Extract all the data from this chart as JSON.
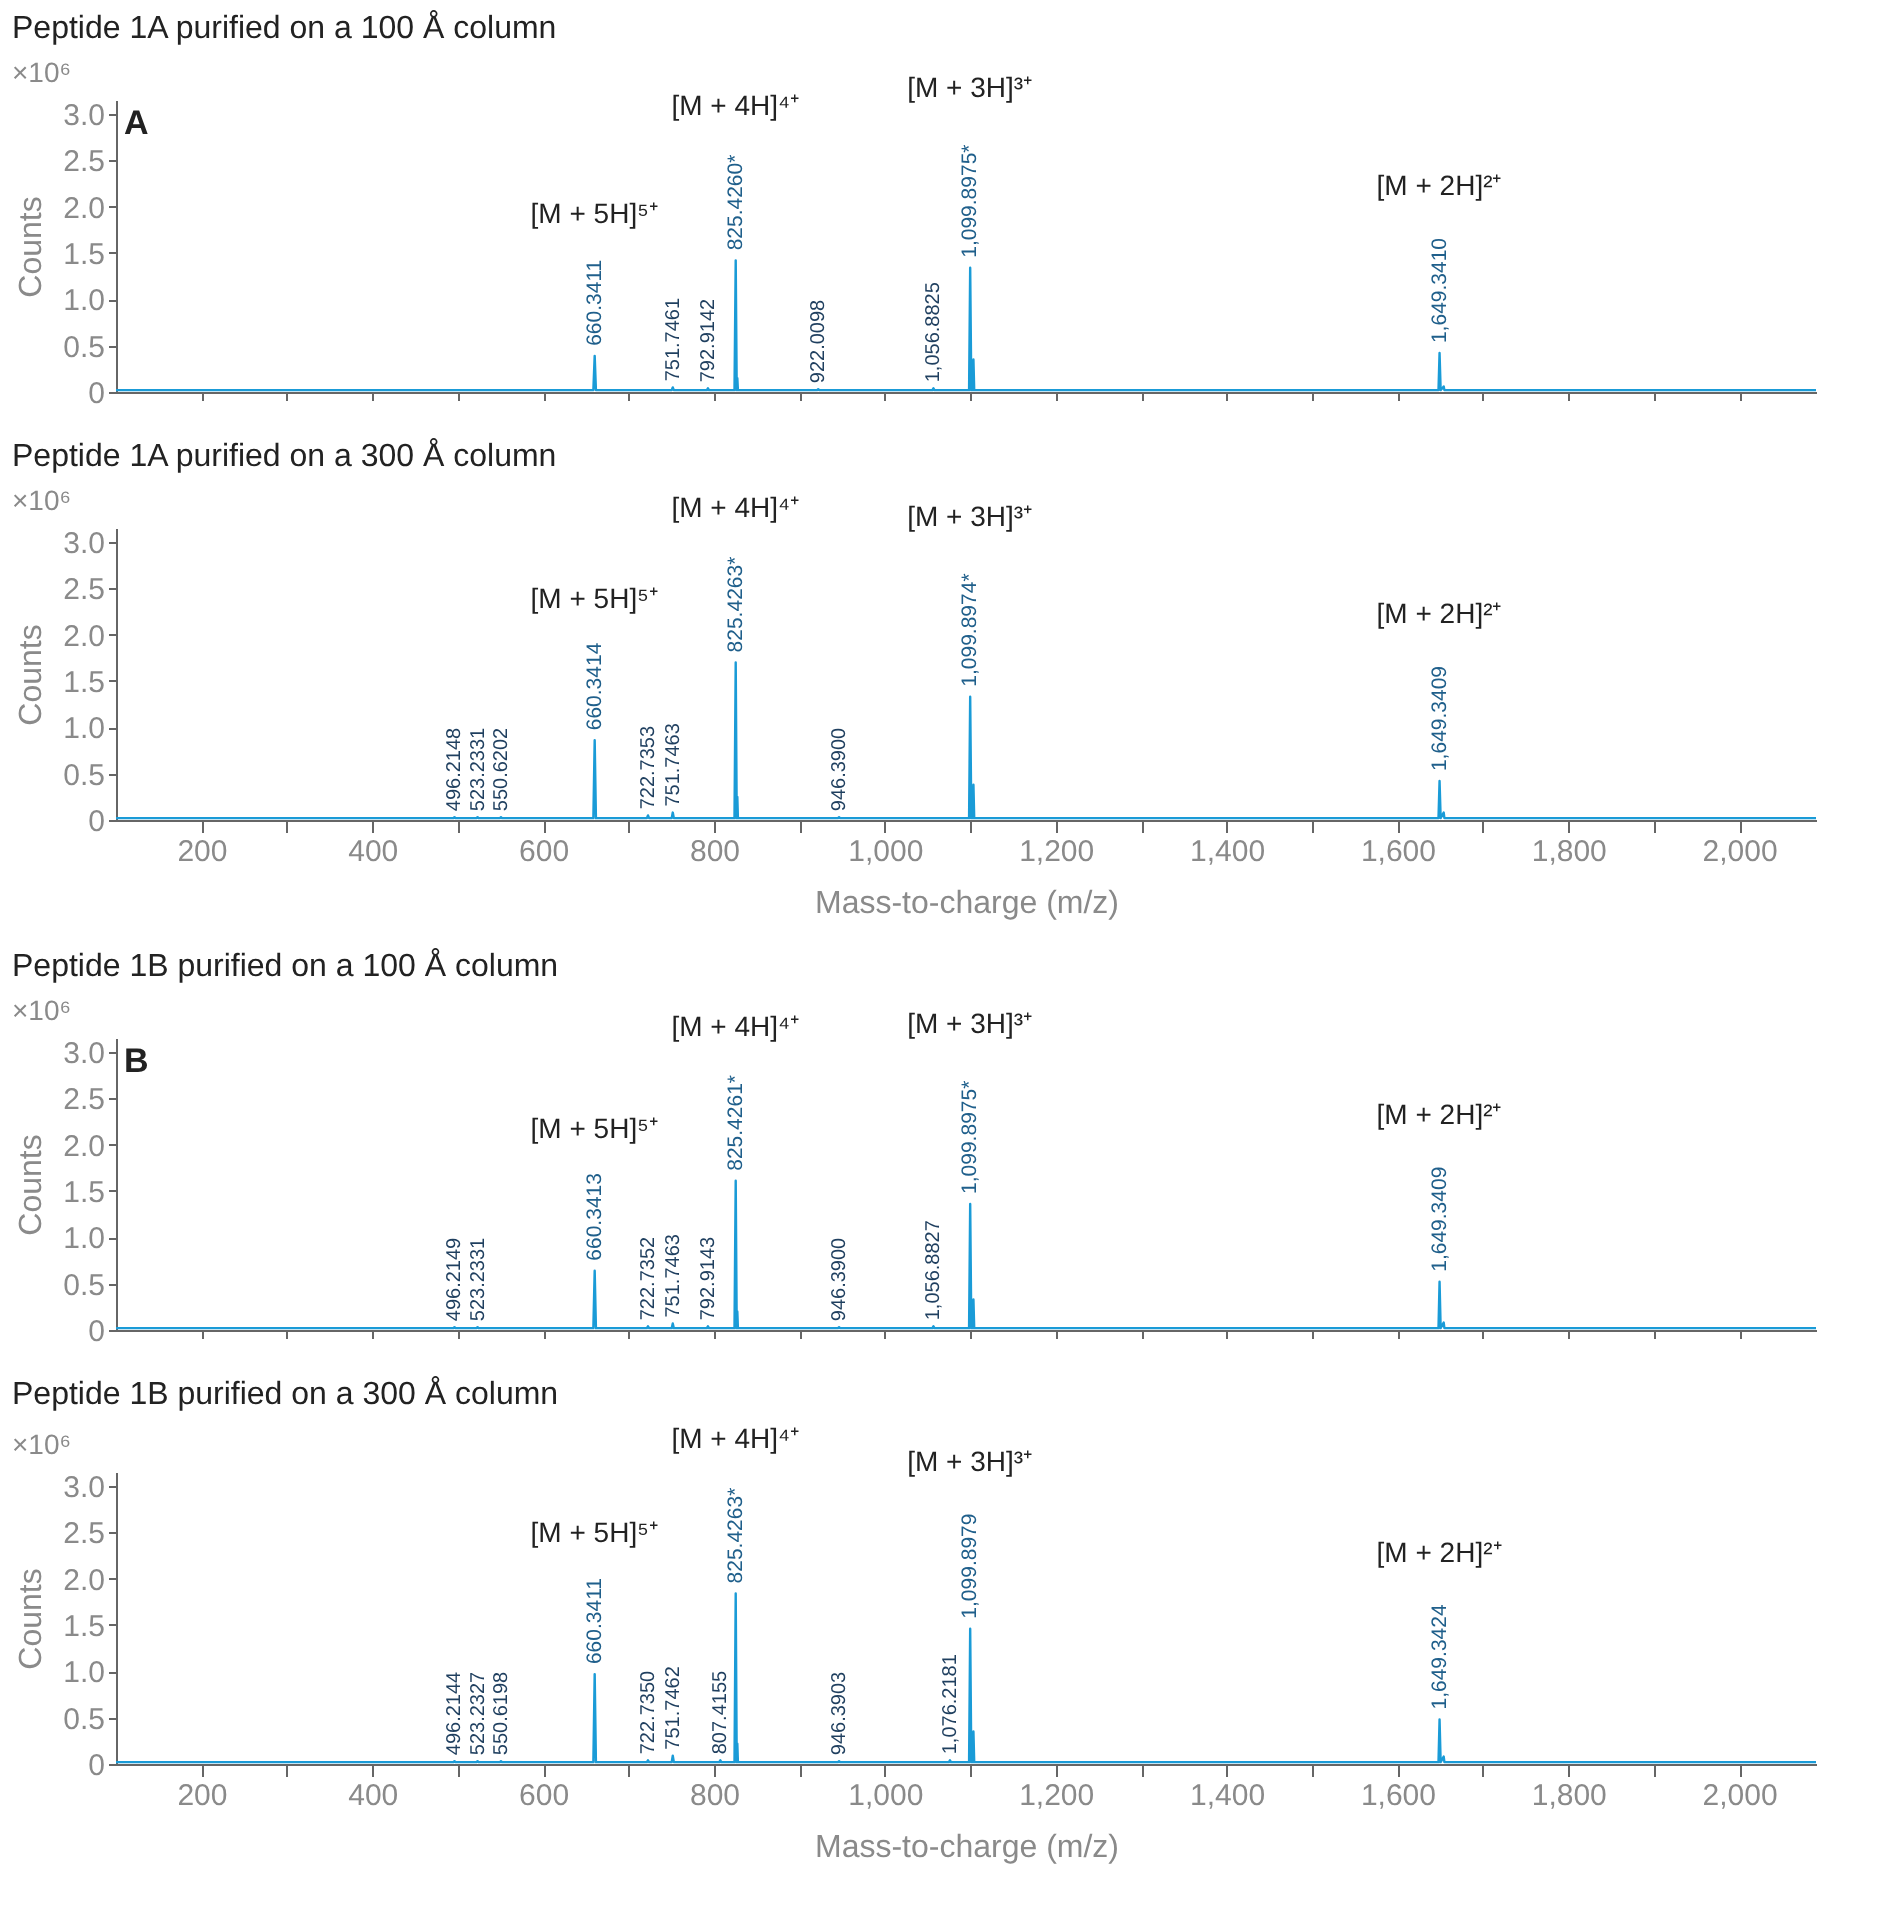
{
  "chart_data": [
    {
      "type": "line",
      "title": "Peptide 1A purified on a 100 Å column",
      "ylabel": "Counts",
      "color": "#1a9bd7",
      "tick_labels": "y",
      "xlim": [
        100,
        2090
      ],
      "ylim": [
        0,
        3.15
      ],
      "xticks": [
        200,
        300,
        400,
        500,
        600,
        700,
        800,
        900,
        1000,
        1100,
        1200,
        1300,
        1400,
        1500,
        1600,
        1700,
        1800,
        1900,
        2000
      ],
      "yticks": [
        0,
        0.5,
        {
          "value": 1,
          "label": "1.0"
        },
        1.5,
        {
          "value": 2,
          "label": "2.0"
        },
        2.5,
        {
          "value": 3,
          "label": "3.0"
        }
      ],
      "x": [
        100,
        658.8,
        660.3411,
        661.8,
        750.5,
        751.7461,
        753,
        791.7,
        792.9142,
        794.1,
        824,
        825.426,
        826.6,
        827.3,
        828,
        829,
        920.8,
        922.0098,
        923.2,
        1055.7,
        1056.8825,
        1058.1,
        1098.6,
        1099.8975,
        1101.2,
        1102.3,
        1103,
        1103.7,
        1104.6,
        1106,
        1648.1,
        1649.341,
        1650.6,
        1654.2,
        1655,
        1656,
        2090
      ],
      "values": [
        0.02,
        0.02,
        0.39,
        0.02,
        0.02,
        0.05,
        0.02,
        0.02,
        0.04,
        0.02,
        0.02,
        1.42,
        0.02,
        0.15,
        0.02,
        0.02,
        0.02,
        0.03,
        0.02,
        0.02,
        0.04,
        0.02,
        0.02,
        1.34,
        0.02,
        0.12,
        0.02,
        0.35,
        0.02,
        0.02,
        0.02,
        0.42,
        0.02,
        0.06,
        0.02,
        0.02,
        0.02
      ],
      "annotations": [
        "×10⁶",
        "A",
        {
          "text": "660.3411",
          "x": 660.3411,
          "y": 0.39
        },
        "[M + 5H]⁵⁺",
        {
          "text": "751.7461",
          "x": 751.7461,
          "y": 0.05
        },
        {
          "text": "792.9142",
          "x": 792.9142,
          "y": 0.04
        },
        {
          "text": "825.4260*",
          "x": 825.426,
          "y": 1.42
        },
        "[M + 4H]⁴⁺",
        {
          "text": "922.0098",
          "x": 922.0098,
          "y": 0.03
        },
        {
          "text": "1,056.8825",
          "x": 1056.8825,
          "y": 0.04
        },
        {
          "text": "1,099.8975*",
          "x": 1099.8975,
          "y": 1.34
        },
        "[M + 3H]³⁺",
        {
          "text": "1,649.3410",
          "x": 1649.341,
          "y": 0.42
        },
        "[M + 2H]²⁺"
      ]
    },
    {
      "type": "line",
      "title": "Peptide 1A purified on a 300 Å column",
      "xlabel": "Mass-to-charge (m/z)",
      "ylabel": "Counts",
      "color": "#1a9bd7",
      "xlim": [
        100,
        2090
      ],
      "ylim": [
        0,
        3.15
      ],
      "xticks": [
        200,
        {
          "value": 300,
          "label": null
        },
        400,
        {
          "value": 500,
          "label": null
        },
        600,
        {
          "value": 700,
          "label": null
        },
        800,
        {
          "value": 900,
          "label": null
        },
        {
          "value": 1000,
          "label": "1,000"
        },
        {
          "value": 1100,
          "label": null
        },
        {
          "value": 1200,
          "label": "1,200"
        },
        {
          "value": 1300,
          "label": null
        },
        {
          "value": 1400,
          "label": "1,400"
        },
        {
          "value": 1500,
          "label": null
        },
        {
          "value": 1600,
          "label": "1,600"
        },
        {
          "value": 1700,
          "label": null
        },
        {
          "value": 1800,
          "label": "1,800"
        },
        {
          "value": 1900,
          "label": null
        },
        {
          "value": 2000,
          "label": "2,000"
        }
      ],
      "yticks": [
        0,
        0.5,
        {
          "value": 1,
          "label": "1.0"
        },
        1.5,
        {
          "value": 2,
          "label": "2.0"
        },
        2.5,
        {
          "value": 3,
          "label": "3.0"
        }
      ],
      "x": [
        100,
        495,
        496.2148,
        497.4,
        522,
        523.2331,
        524.4,
        549.4,
        550.6202,
        551.8,
        658.8,
        660.3414,
        661.8,
        721.5,
        722.7353,
        724,
        750.5,
        751.7463,
        753,
        824,
        825.4263,
        826.6,
        827.3,
        828,
        829,
        945.2,
        946.39,
        947.6,
        1098.6,
        1099.8974,
        1101.2,
        1102.3,
        1103,
        1103.7,
        1104.6,
        1106,
        1648.1,
        1649.3409,
        1650.6,
        1654.2,
        1655,
        1656,
        2090
      ],
      "values": [
        0.02,
        0.02,
        0.03,
        0.02,
        0.02,
        0.03,
        0.02,
        0.02,
        0.03,
        0.02,
        0.02,
        0.86,
        0.02,
        0.02,
        0.05,
        0.02,
        0.02,
        0.08,
        0.02,
        0.02,
        1.7,
        0.02,
        0.25,
        0.02,
        0.02,
        0.02,
        0.03,
        0.02,
        0.02,
        1.33,
        0.02,
        0.12,
        0.02,
        0.38,
        0.02,
        0.02,
        0.02,
        0.42,
        0.02,
        0.08,
        0.02,
        0.02,
        0.02
      ],
      "annotations": [
        "×10⁶",
        {
          "text": "496.2148",
          "x": 496.2148,
          "y": 0.03
        },
        {
          "text": "523.2331",
          "x": 523.2331,
          "y": 0.03
        },
        {
          "text": "550.6202",
          "x": 550.6202,
          "y": 0.03
        },
        {
          "text": "660.3414",
          "x": 660.3414,
          "y": 0.86
        },
        "[M + 5H]⁵⁺",
        {
          "text": "722.7353",
          "x": 722.7353,
          "y": 0.05
        },
        {
          "text": "751.7463",
          "x": 751.7463,
          "y": 0.08
        },
        {
          "text": "825.4263*",
          "x": 825.4263,
          "y": 1.7
        },
        "[M + 4H]⁴⁺",
        {
          "text": "946.3900",
          "x": 946.39,
          "y": 0.03
        },
        {
          "text": "1,099.8974*",
          "x": 1099.8974,
          "y": 1.33
        },
        "[M + 3H]³⁺",
        {
          "text": "1,649.3409",
          "x": 1649.3409,
          "y": 0.42
        },
        "[M + 2H]²⁺"
      ]
    },
    {
      "type": "line",
      "title": "Peptide 1B purified on a 100 Å column",
      "ylabel": "Counts",
      "color": "#1a9bd7",
      "tick_labels": "y",
      "xlim": [
        100,
        2090
      ],
      "ylim": [
        0,
        3.15
      ],
      "xticks": [
        200,
        300,
        400,
        500,
        600,
        700,
        800,
        900,
        1000,
        1100,
        1200,
        1300,
        1400,
        1500,
        1600,
        1700,
        1800,
        1900,
        2000
      ],
      "yticks": [
        0,
        0.5,
        {
          "value": 1,
          "label": "1.0"
        },
        1.5,
        {
          "value": 2,
          "label": "2.0"
        },
        2.5,
        {
          "value": 3,
          "label": "3.0"
        }
      ],
      "x": [
        100,
        495,
        496.2149,
        497.4,
        522,
        523.2331,
        524.4,
        658.8,
        660.3413,
        661.8,
        721.5,
        722.7352,
        724,
        750.5,
        751.7463,
        753,
        791.7,
        792.9143,
        794.1,
        824,
        825.4261,
        826.6,
        827.3,
        828,
        829,
        945.2,
        946.39,
        947.6,
        1055.7,
        1056.8827,
        1058.1,
        1098.6,
        1099.8975,
        1101.2,
        1102.3,
        1103,
        1103.7,
        1104.6,
        1106,
        1648.1,
        1649.3409,
        1650.6,
        1654.2,
        1655,
        1656,
        2090
      ],
      "values": [
        0.02,
        0.02,
        0.03,
        0.02,
        0.02,
        0.03,
        0.02,
        0.02,
        0.64,
        0.02,
        0.02,
        0.04,
        0.02,
        0.02,
        0.07,
        0.02,
        0.02,
        0.04,
        0.02,
        0.02,
        1.61,
        0.02,
        0.2,
        0.02,
        0.02,
        0.02,
        0.03,
        0.02,
        0.02,
        0.04,
        0.02,
        0.02,
        1.36,
        0.02,
        0.12,
        0.02,
        0.33,
        0.02,
        0.02,
        0.02,
        0.52,
        0.02,
        0.08,
        0.02,
        0.02,
        0.02
      ],
      "annotations": [
        "×10⁶",
        "B",
        {
          "text": "496.2149",
          "x": 496.2149,
          "y": 0.03
        },
        {
          "text": "523.2331",
          "x": 523.2331,
          "y": 0.03
        },
        {
          "text": "660.3413",
          "x": 660.3413,
          "y": 0.64
        },
        "[M + 5H]⁵⁺",
        {
          "text": "722.7352",
          "x": 722.7352,
          "y": 0.04
        },
        {
          "text": "751.7463",
          "x": 751.7463,
          "y": 0.07
        },
        {
          "text": "792.9143",
          "x": 792.9143,
          "y": 0.04
        },
        {
          "text": "825.4261*",
          "x": 825.4261,
          "y": 1.61
        },
        "[M + 4H]⁴⁺",
        {
          "text": "946.3900",
          "x": 946.39,
          "y": 0.03
        },
        {
          "text": "1,056.8827",
          "x": 1056.8827,
          "y": 0.04
        },
        {
          "text": "1,099.8975*",
          "x": 1099.8975,
          "y": 1.36
        },
        "[M + 3H]³⁺",
        {
          "text": "1,649.3409",
          "x": 1649.3409,
          "y": 0.52
        },
        "[M + 2H]²⁺"
      ]
    },
    {
      "type": "line",
      "title": "Peptide 1B purified on a 300 Å column",
      "xlabel": "Mass-to-charge (m/z)",
      "ylabel": "Counts",
      "color": "#1a9bd7",
      "xlim": [
        100,
        2090
      ],
      "ylim": [
        0,
        3.15
      ],
      "xticks": [
        200,
        {
          "value": 300,
          "label": null
        },
        400,
        {
          "value": 500,
          "label": null
        },
        600,
        {
          "value": 700,
          "label": null
        },
        800,
        {
          "value": 900,
          "label": null
        },
        {
          "value": 1000,
          "label": "1,000"
        },
        {
          "value": 1100,
          "label": null
        },
        {
          "value": 1200,
          "label": "1,200"
        },
        {
          "value": 1300,
          "label": null
        },
        {
          "value": 1400,
          "label": "1,400"
        },
        {
          "value": 1500,
          "label": null
        },
        {
          "value": 1600,
          "label": "1,600"
        },
        {
          "value": 1700,
          "label": null
        },
        {
          "value": 1800,
          "label": "1,800"
        },
        {
          "value": 1900,
          "label": null
        },
        {
          "value": 2000,
          "label": "2,000"
        }
      ],
      "yticks": [
        0,
        0.5,
        {
          "value": 1,
          "label": "1.0"
        },
        1.5,
        {
          "value": 2,
          "label": "2.0"
        },
        2.5,
        {
          "value": 3,
          "label": "3.0"
        }
      ],
      "x": [
        100,
        495,
        496.2144,
        497.4,
        522,
        523.2327,
        524.4,
        549.4,
        550.6198,
        551.8,
        658.8,
        660.3411,
        661.8,
        721.5,
        722.735,
        724,
        750.5,
        751.7462,
        753,
        806.2,
        807.4155,
        808.6,
        824,
        825.4263,
        826.6,
        827.3,
        828,
        829,
        945.2,
        946.3903,
        947.6,
        1075,
        1076.2181,
        1077.4,
        1098.6,
        1099.8979,
        1101.2,
        1102.3,
        1103,
        1103.7,
        1104.6,
        1106,
        1648.1,
        1649.3424,
        1650.6,
        1654.2,
        1655,
        1656,
        2090
      ],
      "values": [
        0.02,
        0.02,
        0.03,
        0.02,
        0.02,
        0.03,
        0.02,
        0.02,
        0.03,
        0.02,
        0.02,
        0.97,
        0.02,
        0.02,
        0.04,
        0.02,
        0.02,
        0.09,
        0.02,
        0.02,
        0.04,
        0.02,
        0.02,
        1.84,
        0.02,
        0.22,
        0.02,
        0.02,
        0.02,
        0.03,
        0.02,
        0.02,
        0.04,
        0.02,
        0.02,
        1.46,
        0.02,
        0.12,
        0.02,
        0.35,
        0.02,
        0.02,
        0.02,
        0.48,
        0.02,
        0.08,
        0.02,
        0.02,
        0.02
      ],
      "annotations": [
        "×10⁶",
        {
          "text": "496.2144",
          "x": 496.2144,
          "y": 0.03
        },
        {
          "text": "523.2327",
          "x": 523.2327,
          "y": 0.03
        },
        {
          "text": "550.6198",
          "x": 550.6198,
          "y": 0.03
        },
        {
          "text": "660.3411",
          "x": 660.3411,
          "y": 0.97
        },
        "[M + 5H]⁵⁺",
        {
          "text": "722.7350",
          "x": 722.735,
          "y": 0.04
        },
        {
          "text": "751.7462",
          "x": 751.7462,
          "y": 0.09
        },
        {
          "text": "807.4155",
          "x": 807.4155,
          "y": 0.04
        },
        {
          "text": "825.4263*",
          "x": 825.4263,
          "y": 1.84
        },
        "[M + 4H]⁴⁺",
        {
          "text": "946.3903",
          "x": 946.3903,
          "y": 0.03
        },
        {
          "text": "1,076.2181",
          "x": 1076.2181,
          "y": 0.04
        },
        {
          "text": "1,099.8979",
          "x": 1099.8979,
          "y": 1.46
        },
        "[M + 3H]³⁺",
        {
          "text": "1,649.3424",
          "x": 1649.3424,
          "y": 0.48
        },
        "[M + 2H]²⁺"
      ]
    }
  ]
}
